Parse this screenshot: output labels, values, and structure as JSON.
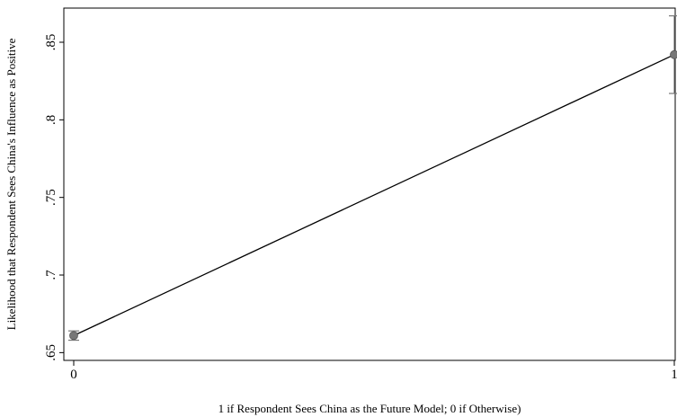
{
  "chart_data": {
    "type": "line",
    "title": "",
    "xlabel": "1 if Respondent Sees China as the Future Model; 0 if Otherwise)",
    "ylabel": "Likelihood that Respondent Sees China's Influence as Positive",
    "x_ticks": [
      0,
      1
    ],
    "x_tick_labels": [
      "0",
      "1"
    ],
    "y_ticks": [
      0.65,
      0.7,
      0.75,
      0.8,
      0.85
    ],
    "y_tick_labels": [
      ".65",
      ".7",
      ".75",
      ".8",
      ".85"
    ],
    "xlim": [
      0,
      1
    ],
    "ylim": [
      0.645,
      0.872
    ],
    "grid": false,
    "legend": "none",
    "series": [
      {
        "x": [
          0,
          1
        ],
        "y": [
          0.661,
          0.842
        ],
        "ci_low": [
          0.658,
          0.817
        ],
        "ci_high": [
          0.664,
          0.867
        ]
      }
    ],
    "colors": {
      "line": "#000000",
      "marker": "#777777",
      "errorbar": "#777777",
      "axis": "#000000"
    }
  }
}
